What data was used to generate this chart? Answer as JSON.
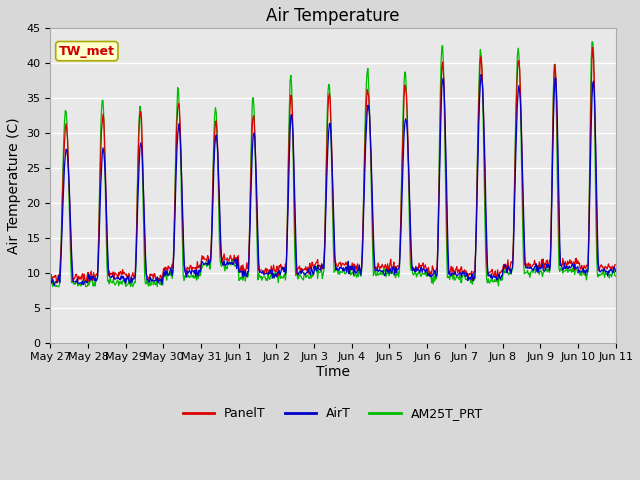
{
  "title": "Air Temperature",
  "ylabel": "Air Temperature (C)",
  "xlabel": "Time",
  "ylim": [
    0,
    45
  ],
  "yticks": [
    0,
    5,
    10,
    15,
    20,
    25,
    30,
    35,
    40,
    45
  ],
  "annotation_text": "TW_met",
  "annotation_color": "#cc0000",
  "annotation_bg": "#ffffcc",
  "annotation_border": "#aaaa00",
  "legend_labels": [
    "PanelT",
    "AirT",
    "AM25T_PRT"
  ],
  "line_colors": [
    "#dd0000",
    "#0000cc",
    "#00bb00"
  ],
  "background_color": "#d8d8d8",
  "plot_bg": "#e8e8e8",
  "grid_color": "#ffffff",
  "title_fontsize": 12,
  "axis_fontsize": 10,
  "tick_fontsize": 8,
  "x_tick_labels": [
    "May 27",
    "May 28",
    "May 29",
    "May 30",
    "May 31",
    "Jun 1",
    "Jun 2",
    "Jun 3",
    "Jun 4",
    "Jun 5",
    "Jun 6",
    "Jun 7",
    "Jun 8",
    "Jun 9",
    "Jun 10",
    "Jun 11"
  ],
  "num_days": 15
}
